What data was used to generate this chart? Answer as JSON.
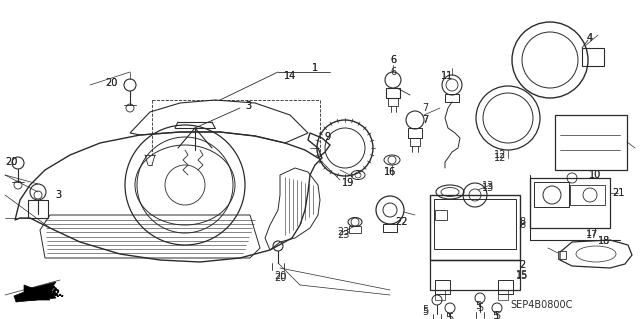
{
  "bg_color": "#ffffff",
  "fig_width": 6.4,
  "fig_height": 3.19,
  "dpi": 100,
  "diagram_code": "SEP4B0800C",
  "line_color": "#2a2a2a",
  "line_width": 0.8
}
